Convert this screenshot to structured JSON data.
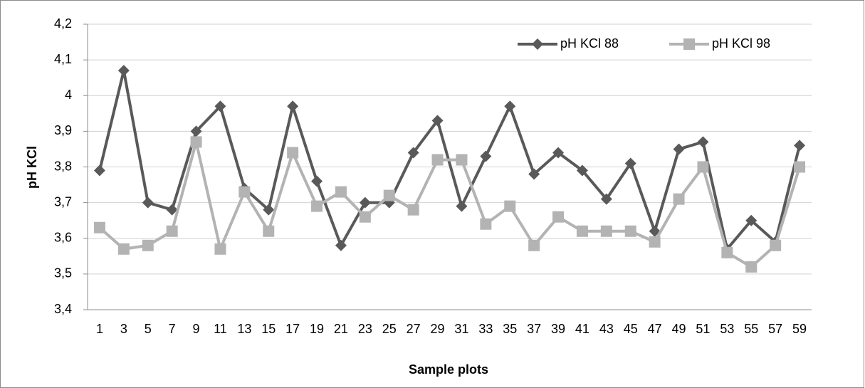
{
  "chart_data": {
    "type": "line",
    "x_label": "Sample plots",
    "y_label": "pH KCl",
    "categories": [
      "1",
      "3",
      "5",
      "7",
      "9",
      "11",
      "13",
      "15",
      "17",
      "19",
      "21",
      "23",
      "25",
      "27",
      "29",
      "31",
      "33",
      "35",
      "37",
      "39",
      "41",
      "43",
      "45",
      "47",
      "49",
      "51",
      "53",
      "55",
      "57",
      "59"
    ],
    "series": [
      {
        "name": "pH KCl 88",
        "color": "#595959",
        "marker": "diamond",
        "values": [
          3.79,
          4.07,
          3.7,
          3.68,
          3.9,
          3.97,
          3.74,
          3.68,
          3.97,
          3.76,
          3.58,
          3.7,
          3.7,
          3.84,
          3.93,
          3.69,
          3.83,
          3.97,
          3.78,
          3.84,
          3.79,
          3.71,
          3.81,
          3.62,
          3.85,
          3.87,
          3.57,
          3.65,
          3.59,
          3.86
        ]
      },
      {
        "name": "pH KCl 98",
        "color": "#b3b3b3",
        "marker": "square",
        "values": [
          3.63,
          3.57,
          3.58,
          3.62,
          3.87,
          3.57,
          3.73,
          3.62,
          3.84,
          3.69,
          3.73,
          3.66,
          3.72,
          3.68,
          3.82,
          3.82,
          3.64,
          3.69,
          3.58,
          3.66,
          3.62,
          3.62,
          3.62,
          3.59,
          3.71,
          3.8,
          3.56,
          3.52,
          3.58,
          3.8
        ]
      }
    ],
    "ylim": [
      3.4,
      4.2
    ],
    "yticks": [
      {
        "value": 3.4,
        "label": "3,4"
      },
      {
        "value": 3.5,
        "label": "3,5"
      },
      {
        "value": 3.6,
        "label": "3,6"
      },
      {
        "value": 3.7,
        "label": "3,7"
      },
      {
        "value": 3.8,
        "label": "3,8"
      },
      {
        "value": 3.9,
        "label": "3,9"
      },
      4,
      {
        "value": 4.1,
        "label": "4,1"
      },
      {
        "value": 4.2,
        "label": "4,2"
      }
    ],
    "grid": true,
    "legend": "top-right"
  }
}
